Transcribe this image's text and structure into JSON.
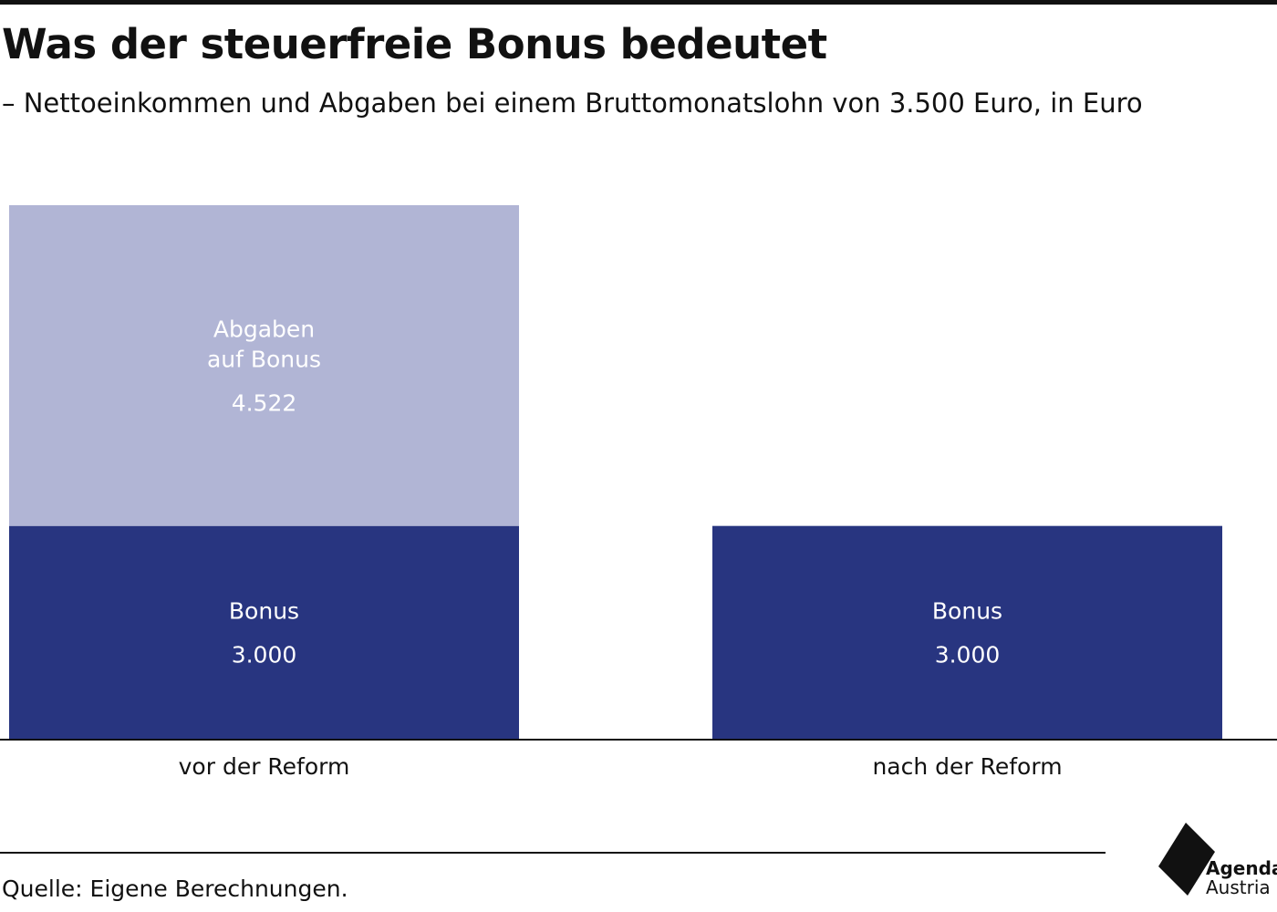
{
  "header": {
    "title": "Was der steuerfreie Bonus bedeutet",
    "subtitle": "– Nettoeinkommen und Abgaben bei einem Bruttomonatslohn von 3.500 Euro, in Euro"
  },
  "chart_data": {
    "type": "bar",
    "stacked": true,
    "categories": [
      "vor der Reform",
      "nach der Reform"
    ],
    "series": [
      {
        "name": "Bonus",
        "values": [
          3000,
          3000
        ],
        "color": "#283580"
      },
      {
        "name": "Abgaben auf Bonus",
        "values": [
          4522,
          0
        ],
        "color": "#b1b5d5"
      }
    ],
    "segment_labels": [
      [
        {
          "lines": [
            "Bonus"
          ],
          "value": "3.000"
        },
        {
          "lines": [
            "Abgaben",
            "auf Bonus"
          ],
          "value": "4.522"
        }
      ],
      [
        {
          "lines": [
            "Bonus"
          ],
          "value": "3.000"
        }
      ]
    ]
  },
  "footer": {
    "source": "Quelle: Eigene Berechnungen."
  },
  "logo": {
    "name": "agenda-austria-logo",
    "line1": "Agenda",
    "line2": "Austria"
  }
}
